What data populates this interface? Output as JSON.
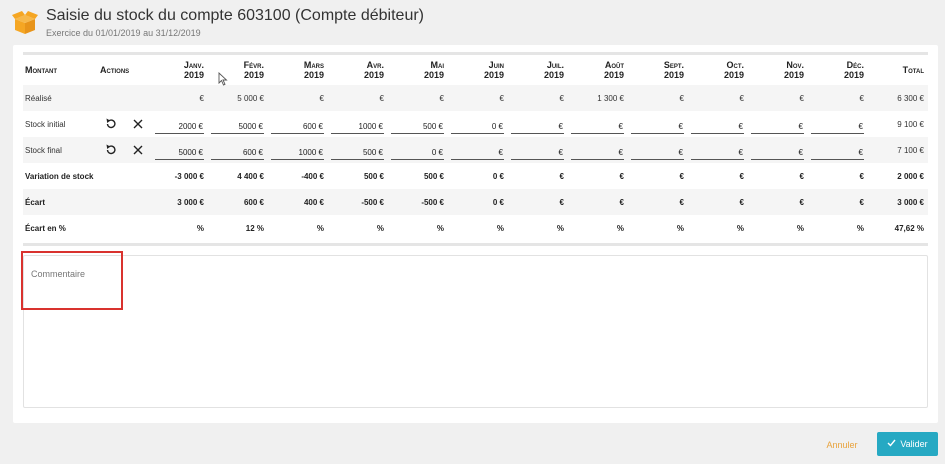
{
  "header": {
    "icon": "box-icon",
    "title": "Saisie du stock du compte 603100 (Compte débiteur)",
    "subtitle": "Exercice du 01/01/2019 au 31/12/2019"
  },
  "table": {
    "col_montant": "Montant",
    "col_actions": "Actions",
    "col_total": "Total",
    "months": [
      {
        "name": "Janv.",
        "year": "2019"
      },
      {
        "name": "Févr.",
        "year": "2019"
      },
      {
        "name": "Mars",
        "year": "2019"
      },
      {
        "name": "Avr.",
        "year": "2019"
      },
      {
        "name": "Mai",
        "year": "2019"
      },
      {
        "name": "Juin",
        "year": "2019"
      },
      {
        "name": "Juil.",
        "year": "2019"
      },
      {
        "name": "Août",
        "year": "2019"
      },
      {
        "name": "Sept.",
        "year": "2019"
      },
      {
        "name": "Oct.",
        "year": "2019"
      },
      {
        "name": "Nov.",
        "year": "2019"
      },
      {
        "name": "Déc.",
        "year": "2019"
      }
    ],
    "rows": {
      "realise": {
        "label": "Réalisé",
        "values": [
          "€",
          "5 000 €",
          "€",
          "€",
          "€",
          "€",
          "€",
          "1 300 €",
          "€",
          "€",
          "€",
          "€"
        ],
        "total": "6 300 €"
      },
      "stock_initial": {
        "label": "Stock initial",
        "values": [
          "2000 €",
          "5000 €",
          "600 €",
          "1000 €",
          "500 €",
          "0 €",
          "€",
          "€",
          "€",
          "€",
          "€",
          "€"
        ],
        "total": "9 100 €"
      },
      "stock_final": {
        "label": "Stock final",
        "values": [
          "5000 €",
          "600 €",
          "1000 €",
          "500 €",
          "0 €",
          "€",
          "€",
          "€",
          "€",
          "€",
          "€",
          "€"
        ],
        "total": "7 100 €"
      },
      "variation": {
        "label": "Variation de stock",
        "values": [
          "-3 000 €",
          "4 400 €",
          "-400 €",
          "500 €",
          "500 €",
          "0 €",
          "€",
          "€",
          "€",
          "€",
          "€",
          "€"
        ],
        "total": "2 000 €"
      },
      "ecart": {
        "label": "Écart",
        "values": [
          "3 000 €",
          "600 €",
          "400 €",
          "-500 €",
          "-500 €",
          "0 €",
          "€",
          "€",
          "€",
          "€",
          "€",
          "€"
        ],
        "total": "3 000 €"
      },
      "ecart_pct": {
        "label": "Écart en %",
        "values": [
          "%",
          "12 %",
          "%",
          "%",
          "%",
          "%",
          "%",
          "%",
          "%",
          "%",
          "%",
          "%"
        ],
        "total": "47,62 %"
      }
    }
  },
  "comment": {
    "placeholder": "Commentaire"
  },
  "footer": {
    "cancel_label": "Annuler",
    "validate_label": "Valider"
  },
  "colors": {
    "accent": "#26a9c3",
    "cancel": "#e8a33d",
    "highlight": "#d9322e",
    "icon": "#f5a623"
  }
}
